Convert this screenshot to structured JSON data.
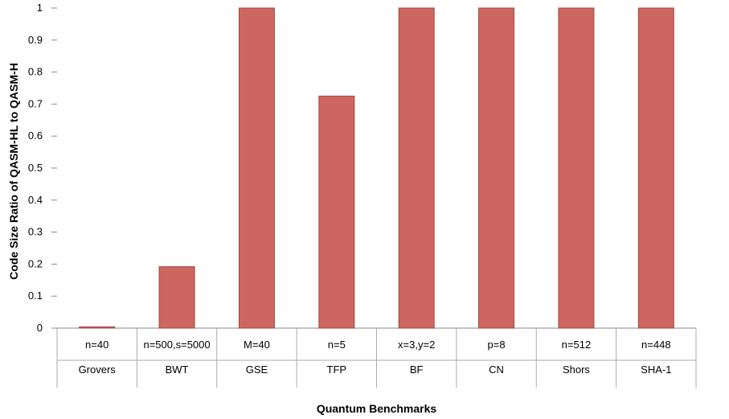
{
  "chart_data": {
    "type": "bar",
    "title": "",
    "xlabel": "Quantum Benchmarks",
    "ylabel": "Code Size Ratio of QASM-HL to QASM-H",
    "ylim": [
      0,
      1
    ],
    "yticks": [
      "0",
      "0.1",
      "0.2",
      "0.3",
      "0.4",
      "0.5",
      "0.6",
      "0.7",
      "0.8",
      "0.9",
      "1"
    ],
    "categories": [
      "Grovers",
      "BWT",
      "GSE",
      "TFP",
      "BF",
      "CN",
      "Shors",
      "SHA-1"
    ],
    "parameters": [
      "n=40",
      "n=500,s=5000",
      "M=40",
      "n=5",
      "x=3,y=2",
      "p=8",
      "n=512",
      "n=448"
    ],
    "values": [
      0.004,
      0.192,
      1.0,
      0.725,
      1.0,
      1.0,
      1.0,
      1.0
    ],
    "grid": false,
    "legend": "none",
    "bar_color": "#cd6660",
    "bar_stroke": "#9e4a45"
  }
}
